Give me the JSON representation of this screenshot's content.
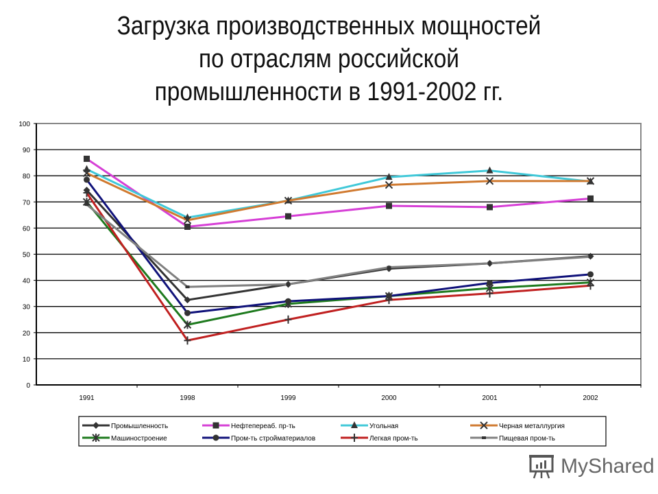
{
  "title": {
    "line1": "Загрузка производственных мощностей",
    "line2": "по отраслям российской",
    "line3": "промышленности в 1991-2002 гг."
  },
  "watermark": {
    "text": "MyShared",
    "icon": "presentation-board-icon"
  },
  "chart_data": {
    "type": "line",
    "title": "Загрузка производственных мощностей по отраслям российской промышленности в 1991-2002 гг.",
    "xlabel": "",
    "ylabel": "",
    "categories": [
      "1991",
      "1998",
      "1999",
      "2000",
      "2001",
      "2002"
    ],
    "ylim": [
      0,
      100
    ],
    "yticks": [
      0,
      10,
      20,
      30,
      40,
      50,
      60,
      70,
      80,
      90,
      100
    ],
    "grid": true,
    "legend_position": "bottom",
    "series": [
      {
        "name": "Промышленность",
        "color": "#333333",
        "marker": "diamond",
        "values": [
          74.5,
          32.5,
          38.5,
          44.5,
          46.5,
          49.2
        ]
      },
      {
        "name": "Нефтепереаб. пр-ть",
        "color": "#d63fd6",
        "marker": "square",
        "values": [
          86.5,
          60.5,
          64.5,
          68.5,
          68,
          71.3
        ]
      },
      {
        "name": "Угольная",
        "color": "#40c8d8",
        "marker": "triangle",
        "values": [
          82.5,
          64,
          70.5,
          79.5,
          82,
          77.8
        ]
      },
      {
        "name": "Черная металлургия",
        "color": "#d07a30",
        "marker": "x",
        "values": [
          81,
          63,
          70.5,
          76.5,
          78,
          78
        ]
      },
      {
        "name": "Машиностроение",
        "color": "#1e7a1e",
        "marker": "asterisk",
        "values": [
          70,
          23,
          31,
          34,
          37,
          39.2
        ]
      },
      {
        "name": "Пром-ть стройматериалов",
        "color": "#10127a",
        "marker": "circle",
        "values": [
          78.5,
          27.5,
          32,
          34,
          39,
          42.3
        ]
      },
      {
        "name": "Легкая пром-ть",
        "color": "#c02020",
        "marker": "plus",
        "values": [
          73.5,
          17,
          25,
          32.5,
          35,
          38
        ]
      },
      {
        "name": "Пищевая пром-ть",
        "color": "#808080",
        "marker": "dot",
        "values": [
          69,
          37.5,
          38.5,
          45,
          46.5,
          49
        ]
      }
    ]
  }
}
